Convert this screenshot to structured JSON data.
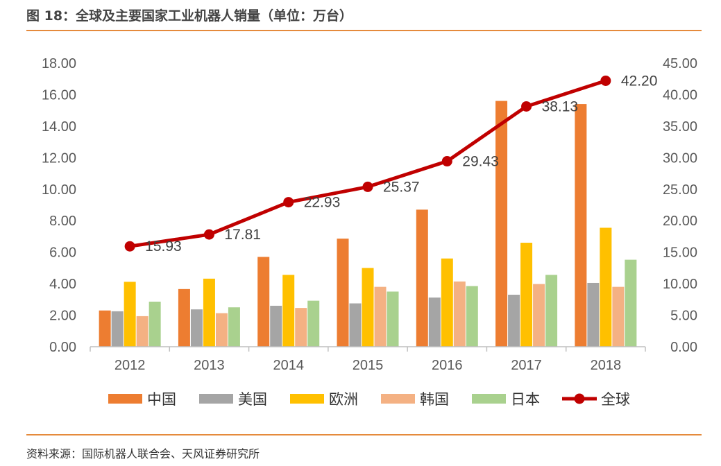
{
  "title": "图 18：全球及主要国家工业机器人销量（单位：万台）",
  "source": "资料来源：国际机器人联合会、天风证券研究所",
  "chart_data": {
    "type": "bar",
    "categories": [
      "2012",
      "2013",
      "2014",
      "2015",
      "2016",
      "2017",
      "2018"
    ],
    "series": [
      {
        "name": "中国",
        "axis": "left",
        "color": "#ED7D31",
        "values": [
          2.3,
          3.66,
          5.7,
          6.86,
          8.7,
          15.6,
          15.4
        ]
      },
      {
        "name": "美国",
        "axis": "left",
        "color": "#A5A5A5",
        "values": [
          2.25,
          2.37,
          2.6,
          2.75,
          3.12,
          3.3,
          4.05
        ]
      },
      {
        "name": "欧洲",
        "axis": "left",
        "color": "#FFC000",
        "values": [
          4.12,
          4.32,
          4.56,
          5.0,
          5.6,
          6.6,
          7.55
        ]
      },
      {
        "name": "韩国",
        "axis": "left",
        "color": "#F4B183",
        "values": [
          1.94,
          2.13,
          2.46,
          3.8,
          4.14,
          3.98,
          3.8
        ]
      },
      {
        "name": "日本",
        "axis": "left",
        "color": "#A9D18E",
        "values": [
          2.86,
          2.5,
          2.92,
          3.5,
          3.85,
          4.56,
          5.52
        ]
      }
    ],
    "line": {
      "name": "全球",
      "axis": "right",
      "color": "#C00000",
      "values": [
        15.93,
        17.81,
        22.93,
        25.37,
        29.43,
        38.13,
        42.2
      ],
      "labels": [
        "15.93",
        "17.81",
        "22.93",
        "25.37",
        "29.43",
        "38.13",
        "42.20"
      ]
    },
    "y_left": {
      "min": 0,
      "max": 18,
      "step": 2,
      "ticks": [
        "0.00",
        "2.00",
        "4.00",
        "6.00",
        "8.00",
        "10.00",
        "12.00",
        "14.00",
        "16.00",
        "18.00"
      ]
    },
    "y_right": {
      "min": 0,
      "max": 45,
      "step": 5,
      "ticks": [
        "0.00",
        "5.00",
        "10.00",
        "15.00",
        "20.00",
        "25.00",
        "30.00",
        "35.00",
        "40.00",
        "45.00"
      ]
    },
    "legend": [
      "中国",
      "美国",
      "欧洲",
      "韩国",
      "日本",
      "全球"
    ],
    "legend_position": "bottom",
    "grid": false
  }
}
